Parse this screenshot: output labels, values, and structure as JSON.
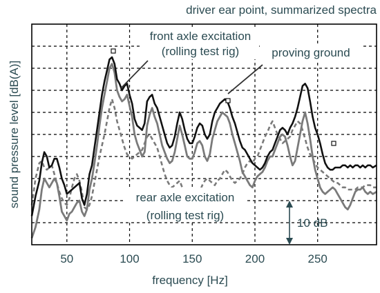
{
  "chart_data": {
    "type": "line",
    "title": "driver ear point, summarized spectra",
    "xlabel": "frequency   [Hz]",
    "ylabel": "sound   pressure   level   [dB(A)]",
    "xlim": [
      22,
      297
    ],
    "ylim": [
      0,
      10
    ],
    "x_ticks": [
      50,
      100,
      150,
      200,
      250
    ],
    "y_gridlines": [
      1,
      2,
      3,
      4,
      5,
      6,
      7,
      8,
      9
    ],
    "grid": true,
    "scale_bar": {
      "label": "10 dB",
      "from": 0,
      "to": 2
    },
    "annotations": [
      {
        "lines": [
          "front axle excitation",
          "(rolling test rig)"
        ]
      },
      {
        "lines": [
          "proving ground"
        ]
      },
      {
        "lines": [
          "rear axle excitation",
          "(rolling test rig)"
        ]
      }
    ],
    "series": [
      {
        "key": "proving_ground",
        "color": "#111111",
        "style": "solid",
        "width": 2.6,
        "x": [
          22,
          25,
          28,
          30,
          32,
          34,
          36,
          38,
          40,
          42,
          44,
          46,
          48,
          50,
          52,
          54,
          56,
          58,
          60,
          62,
          64,
          66,
          68,
          70,
          72,
          74,
          76,
          78,
          80,
          82,
          84,
          86,
          88,
          90,
          92,
          94,
          96,
          98,
          100,
          102,
          104,
          106,
          108,
          110,
          112,
          114,
          116,
          118,
          120,
          122,
          124,
          126,
          128,
          130,
          132,
          134,
          136,
          138,
          140,
          142,
          144,
          146,
          148,
          150,
          152,
          154,
          156,
          158,
          160,
          162,
          164,
          166,
          168,
          170,
          172,
          174,
          176,
          178,
          180,
          182,
          184,
          186,
          188,
          190,
          192,
          194,
          196,
          198,
          200,
          202,
          204,
          206,
          208,
          210,
          212,
          214,
          216,
          218,
          220,
          222,
          224,
          226,
          228,
          230,
          232,
          234,
          236,
          238,
          240,
          242,
          244,
          246,
          248,
          250,
          252,
          254,
          256,
          258,
          260,
          262,
          264,
          266,
          268,
          270,
          272,
          274,
          276,
          278,
          280,
          282,
          284,
          286,
          288,
          290,
          292,
          294,
          297
        ],
        "y": [
          1.3,
          2.2,
          2.9,
          3.7,
          4.2,
          4.0,
          3.5,
          3.6,
          3.9,
          3.9,
          3.5,
          3.0,
          2.7,
          2.3,
          2.4,
          2.5,
          2.6,
          2.7,
          2.8,
          2.1,
          1.8,
          2.3,
          3.2,
          3.6,
          4.4,
          5.2,
          6.0,
          6.8,
          7.4,
          7.9,
          8.4,
          8.5,
          8.2,
          7.5,
          7.3,
          7.0,
          7.2,
          7.3,
          6.8,
          6.4,
          5.7,
          5.4,
          5.3,
          5.2,
          5.5,
          6.5,
          6.7,
          6.8,
          6.4,
          6.2,
          5.8,
          5.4,
          5.0,
          4.6,
          4.4,
          4.5,
          4.9,
          5.5,
          6.0,
          5.7,
          5.2,
          4.8,
          4.6,
          4.6,
          4.9,
          5.3,
          5.5,
          5.4,
          5.0,
          4.8,
          5.0,
          5.6,
          6.0,
          6.2,
          6.4,
          6.5,
          6.6,
          6.5,
          6.2,
          5.8,
          5.5,
          5.1,
          4.7,
          4.4,
          4.3,
          4.1,
          3.9,
          3.7,
          3.6,
          3.5,
          3.4,
          3.5,
          3.7,
          4.0,
          4.2,
          4.3,
          4.6,
          4.9,
          5.2,
          5.3,
          5.2,
          5.0,
          5.3,
          5.5,
          5.8,
          6.2,
          6.7,
          7.2,
          7.3,
          7.1,
          6.5,
          5.8,
          5.3,
          5.0,
          4.6,
          4.1,
          3.7,
          3.5,
          3.4,
          3.4,
          3.5,
          3.5,
          3.5,
          3.6,
          3.6,
          3.5,
          3.6,
          3.5,
          3.6,
          3.6,
          3.5,
          3.6,
          3.5,
          3.6,
          3.6,
          3.5,
          3.6
        ]
      },
      {
        "key": "front_axle",
        "color": "#7a7a7a",
        "style": "solid",
        "width": 2.8,
        "x": [
          22,
          25,
          28,
          30,
          32,
          34,
          36,
          38,
          40,
          42,
          44,
          46,
          48,
          50,
          52,
          54,
          56,
          58,
          60,
          62,
          64,
          66,
          68,
          70,
          72,
          74,
          76,
          78,
          80,
          82,
          84,
          86,
          88,
          90,
          92,
          94,
          96,
          98,
          100,
          102,
          104,
          106,
          108,
          110,
          112,
          114,
          116,
          118,
          120,
          122,
          124,
          126,
          128,
          130,
          132,
          134,
          136,
          138,
          140,
          142,
          144,
          146,
          148,
          150,
          152,
          154,
          156,
          158,
          160,
          162,
          164,
          166,
          168,
          170,
          172,
          174,
          176,
          178,
          180,
          182,
          184,
          186,
          188,
          190,
          192,
          194,
          196,
          198,
          200,
          202,
          204,
          206,
          208,
          210,
          212,
          214,
          216,
          218,
          220,
          222,
          224,
          226,
          228,
          230,
          232,
          234,
          236,
          238,
          240,
          242,
          244,
          246,
          248,
          250,
          252,
          254,
          256,
          258,
          260,
          262,
          264,
          266,
          268,
          270,
          272,
          274,
          276,
          278,
          280,
          282,
          284,
          286,
          288,
          290,
          292,
          294,
          297
        ],
        "y": [
          0.3,
          0.8,
          1.6,
          2.5,
          3.0,
          2.8,
          2.6,
          2.8,
          3.0,
          2.8,
          2.2,
          1.5,
          1.3,
          1.1,
          1.4,
          1.5,
          1.7,
          1.9,
          2.0,
          1.5,
          1.3,
          1.6,
          2.5,
          3.0,
          3.7,
          4.5,
          5.4,
          6.2,
          6.8,
          7.4,
          8.0,
          8.2,
          7.8,
          7.0,
          6.7,
          6.5,
          6.6,
          6.8,
          6.3,
          5.8,
          5.0,
          4.6,
          4.3,
          4.0,
          4.2,
          5.4,
          5.9,
          6.2,
          5.8,
          5.5,
          5.0,
          4.5,
          4.2,
          3.9,
          3.7,
          3.8,
          4.2,
          4.8,
          5.4,
          5.0,
          4.5,
          4.0,
          3.9,
          3.9,
          4.2,
          4.6,
          4.7,
          4.5,
          4.0,
          3.8,
          4.1,
          4.8,
          5.2,
          5.6,
          5.8,
          6.0,
          5.9,
          5.8,
          5.5,
          5.0,
          4.6,
          4.2,
          3.8,
          3.3,
          3.1,
          2.9,
          2.7,
          2.6,
          2.9,
          3.1,
          3.2,
          3.3,
          3.5,
          3.8,
          4.0,
          4.0,
          4.3,
          4.6,
          4.9,
          5.0,
          4.9,
          4.5,
          4.0,
          3.6,
          3.8,
          4.4,
          5.0,
          5.6,
          6.0,
          5.5,
          4.8,
          4.0,
          3.4,
          3.0,
          2.6,
          2.4,
          2.3,
          2.4,
          2.5,
          2.6,
          2.5,
          2.3,
          2.1,
          1.9,
          1.7,
          1.6,
          1.8,
          2.1,
          2.4,
          2.5,
          2.5,
          2.6,
          2.4,
          2.3,
          2.4,
          2.3,
          2.4
        ]
      },
      {
        "key": "rear_axle",
        "color": "#7a7a7a",
        "style": "dashed",
        "width": 2.6,
        "x": [
          22,
          25,
          28,
          30,
          32,
          34,
          36,
          38,
          40,
          42,
          44,
          46,
          48,
          50,
          52,
          54,
          56,
          58,
          60,
          62,
          64,
          66,
          68,
          70,
          72,
          74,
          76,
          78,
          80,
          82,
          84,
          86,
          88,
          90,
          92,
          94,
          96,
          98,
          100,
          102,
          104,
          106,
          108,
          110,
          112,
          114,
          116,
          118,
          120,
          122,
          124,
          126,
          128,
          130,
          132,
          134,
          136,
          138,
          140,
          142,
          144,
          146,
          148,
          150,
          152,
          154,
          156,
          158,
          160,
          162,
          164,
          166,
          168,
          170,
          172,
          174,
          176,
          178,
          180,
          182,
          184,
          186,
          188,
          190,
          192,
          194,
          196,
          198,
          200,
          202,
          204,
          206,
          208,
          210,
          212,
          214,
          216,
          218,
          220,
          222,
          224,
          226,
          228,
          230,
          232,
          234,
          236,
          238,
          240,
          242,
          244,
          246,
          248,
          250,
          252,
          254,
          256,
          258,
          260,
          262,
          264,
          266,
          268,
          270,
          272,
          274,
          276,
          278,
          280,
          282,
          284,
          286,
          288,
          290,
          292,
          294,
          297
        ],
        "y": [
          1.8,
          3.0,
          3.7,
          3.8,
          3.5,
          3.4,
          3.5,
          3.6,
          3.2,
          2.8,
          2.4,
          2.1,
          1.9,
          1.8,
          2.1,
          2.6,
          3.0,
          3.2,
          2.9,
          2.4,
          1.7,
          1.6,
          1.8,
          2.2,
          2.8,
          3.4,
          4.0,
          4.5,
          5.0,
          5.6,
          6.2,
          6.6,
          6.2,
          5.6,
          5.2,
          4.8,
          4.4,
          4.1,
          4.0,
          3.9,
          4.0,
          4.1,
          4.2,
          4.3,
          4.6,
          4.9,
          5.0,
          4.8,
          4.6,
          4.4,
          4.0,
          3.6,
          3.2,
          2.9,
          2.7,
          2.6,
          2.7,
          2.8,
          2.9,
          2.6,
          2.3,
          2.0,
          1.8,
          1.7,
          1.8,
          2.1,
          2.4,
          2.7,
          2.9,
          3.0,
          2.9,
          2.8,
          2.7,
          2.9,
          3.0,
          3.2,
          3.4,
          3.3,
          3.1,
          2.9,
          2.8,
          2.9,
          3.0,
          3.2,
          3.5,
          3.7,
          3.8,
          3.7,
          3.9,
          4.0,
          4.3,
          4.6,
          4.9,
          5.1,
          5.4,
          5.6,
          5.3,
          5.0,
          4.8,
          4.6,
          4.7,
          4.8,
          4.9,
          5.2,
          5.4,
          5.6,
          5.5,
          5.2,
          4.8,
          4.4,
          4.1,
          3.9,
          3.7,
          3.5,
          3.4,
          3.3,
          3.2,
          3.1,
          3.0,
          2.9,
          2.8,
          2.8,
          2.7,
          2.6,
          2.6,
          2.5,
          2.5,
          2.5,
          2.5,
          2.6,
          2.6,
          2.6,
          2.7,
          2.7,
          2.7,
          2.6,
          2.6
        ]
      }
    ]
  }
}
